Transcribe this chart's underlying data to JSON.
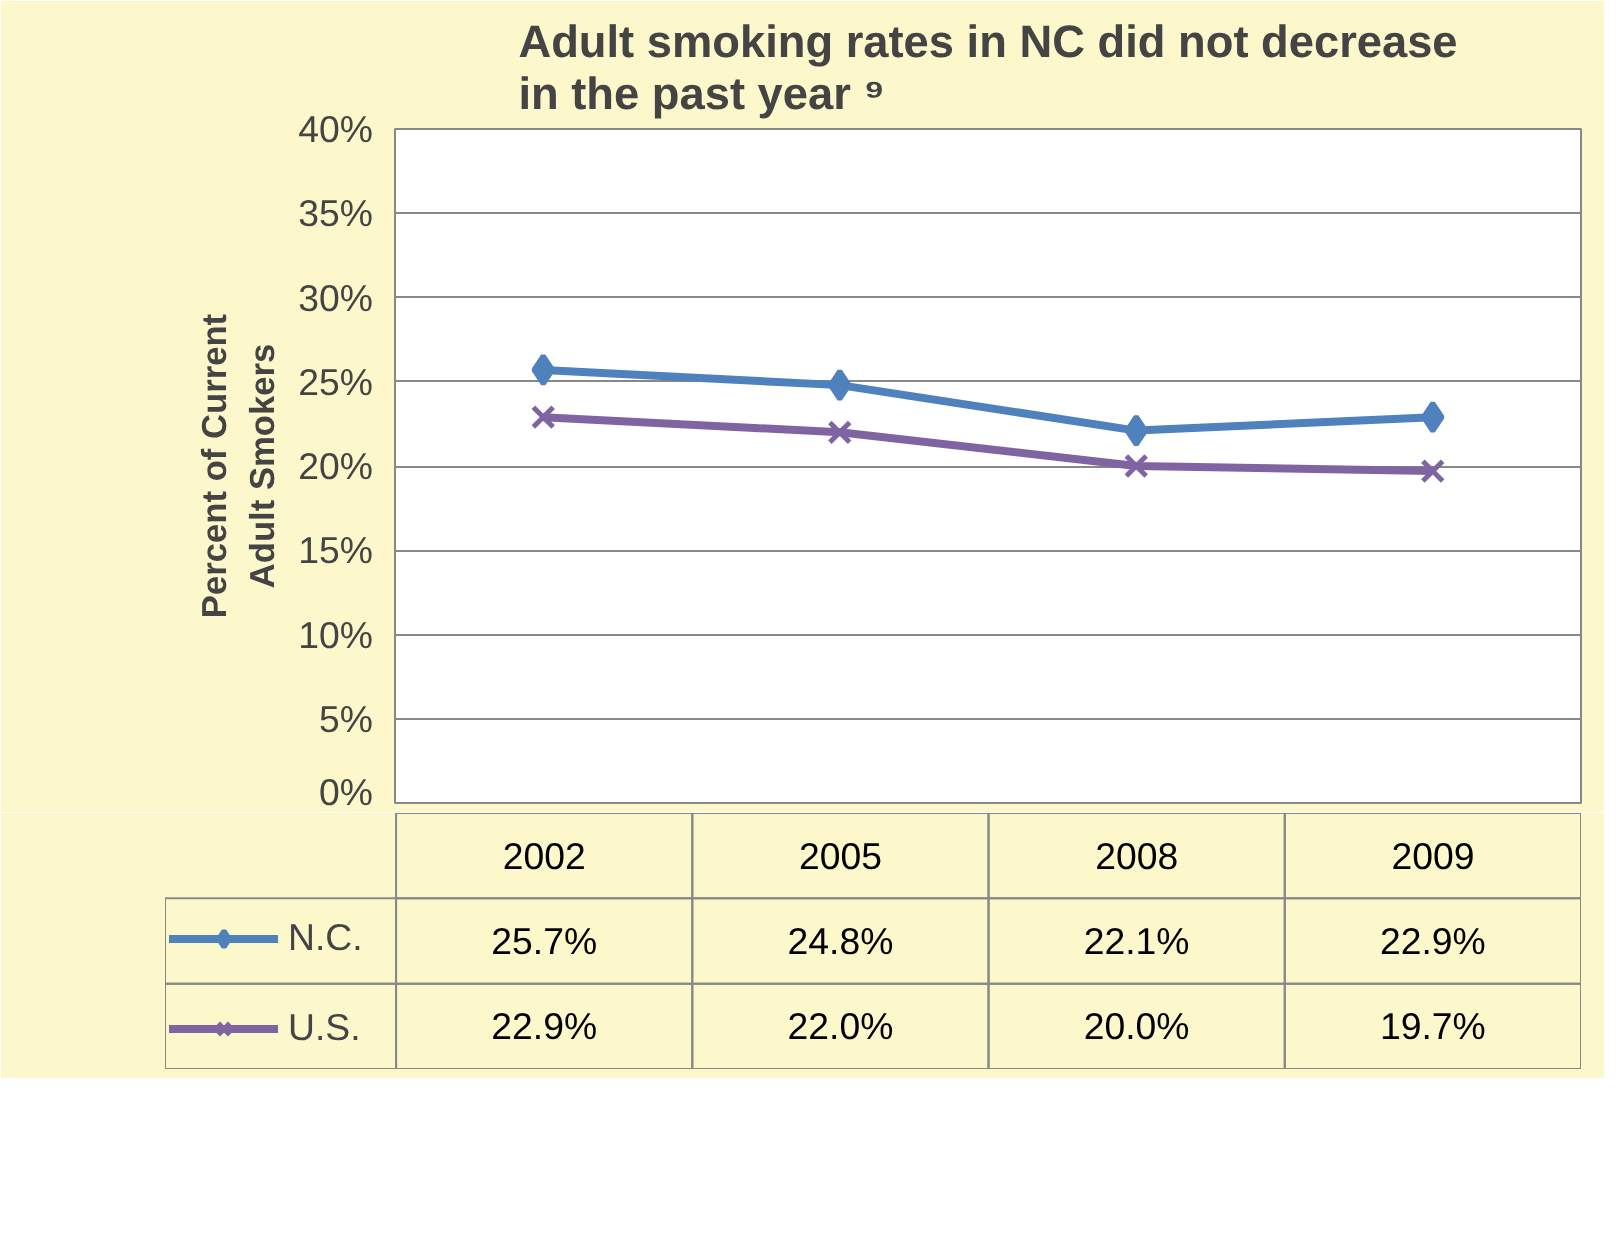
{
  "chart_data": {
    "type": "line",
    "title": "Adult smoking rates in NC did not decrease in the past year ⁹",
    "ylabel": "Percent of Current Adult Smokers",
    "categories": [
      "2002",
      "2005",
      "2008",
      "2009"
    ],
    "series": [
      {
        "name": "N.C.",
        "color": "#4f81bd",
        "marker": "diamond",
        "values": [
          25.7,
          24.8,
          22.1,
          22.9
        ],
        "value_labels": [
          "25.7%",
          "24.8%",
          "22.1%",
          "22.9%"
        ]
      },
      {
        "name": "U.S.",
        "color": "#8064a2",
        "marker": "cross",
        "values": [
          22.9,
          22.0,
          20.0,
          19.7
        ],
        "value_labels": [
          "22.9%",
          "22.0%",
          "20.0%",
          "19.7%"
        ]
      }
    ],
    "ylim": [
      0,
      40
    ],
    "yticks": [
      {
        "value": 0,
        "label": "0%"
      },
      {
        "value": 5,
        "label": "5%"
      },
      {
        "value": 10,
        "label": "10%"
      },
      {
        "value": 15,
        "label": "15%"
      },
      {
        "value": 20,
        "label": "20%"
      },
      {
        "value": 25,
        "label": "25%"
      },
      {
        "value": 30,
        "label": "30%"
      },
      {
        "value": 35,
        "label": "35%"
      },
      {
        "value": 40,
        "label": "40%"
      }
    ],
    "grid": "y",
    "legend": "bottom",
    "line_style": "solid"
  }
}
